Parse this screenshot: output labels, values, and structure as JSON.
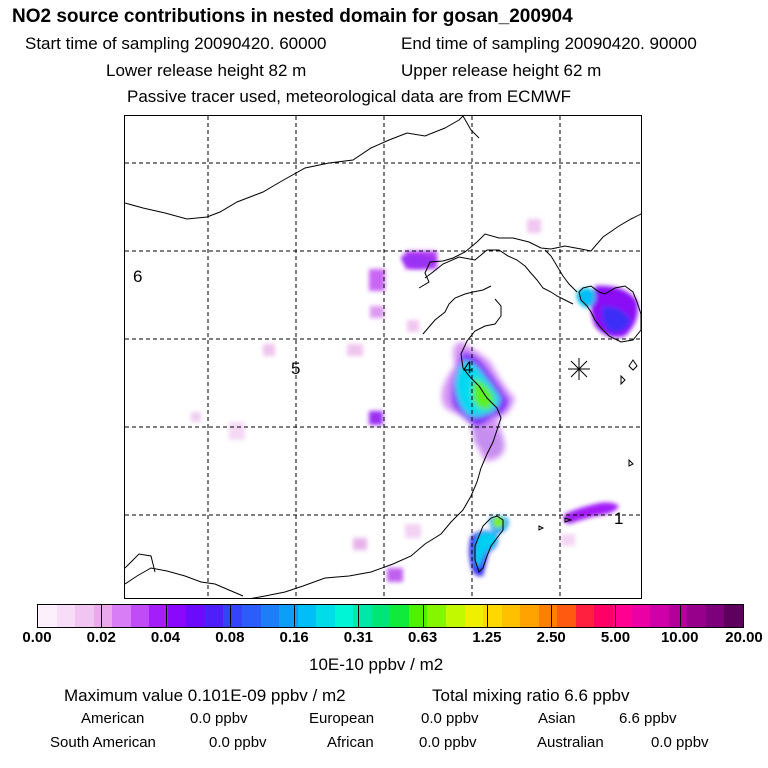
{
  "header": {
    "title": "NO2 source contributions in nested domain for gosan_200904",
    "start_time": "Start time of sampling 20090420. 60000",
    "end_time": "End time of sampling 20090420. 90000",
    "lower_height": "Lower release height   82 m",
    "upper_height": "Upper release height   62 m",
    "tracer_note": "Passive tracer used, meteorological data are from ECMWF"
  },
  "map": {
    "region_labels": [
      "6",
      "5",
      "4",
      "1"
    ],
    "receptor_marker": "asterisk"
  },
  "colorbar": {
    "ticks": [
      "0.00",
      "0.02",
      "0.04",
      "0.08",
      "0.16",
      "0.31",
      "0.63",
      "1.25",
      "2.50",
      "5.00",
      "10.00",
      "20.00"
    ],
    "colors": [
      "#fdf0fd",
      "#f7ddf7",
      "#f1c5f1",
      "#eba8eb",
      "#d97df7",
      "#bf4cf5",
      "#a31ef8",
      "#8a08fc",
      "#6a0bfb",
      "#4d1ff9",
      "#3344fb",
      "#2c5dfa",
      "#1d7ef7",
      "#0d9ef8",
      "#00bff8",
      "#00dde8",
      "#00f5d6",
      "#00e8a8",
      "#00e676",
      "#10ea3a",
      "#4df200",
      "#86f500",
      "#c2f800",
      "#eef000",
      "#ffd800",
      "#ffc000",
      "#ffa300",
      "#ff7f00",
      "#ff5a10",
      "#ff2040",
      "#ff0066",
      "#ff0090",
      "#ea00a5",
      "#d000a8",
      "#b4009a",
      "#96008a",
      "#7c007c",
      "#5e005e"
    ],
    "units": "10E-10 ppbv / m2"
  },
  "summary": {
    "max_value": "Maximum value  0.101E-09 ppbv / m2",
    "total_mixing": "Total mixing ratio       6.6 ppbv",
    "regions": [
      {
        "name": "American",
        "value": "0.0 ppbv"
      },
      {
        "name": "European",
        "value": "0.0 ppbv"
      },
      {
        "name": "Asian",
        "value": "6.6 ppbv"
      },
      {
        "name": "South American",
        "value": "0.0 ppbv"
      },
      {
        "name": "African",
        "value": "0.0 ppbv"
      },
      {
        "name": "Australian",
        "value": "0.0 ppbv"
      }
    ]
  }
}
